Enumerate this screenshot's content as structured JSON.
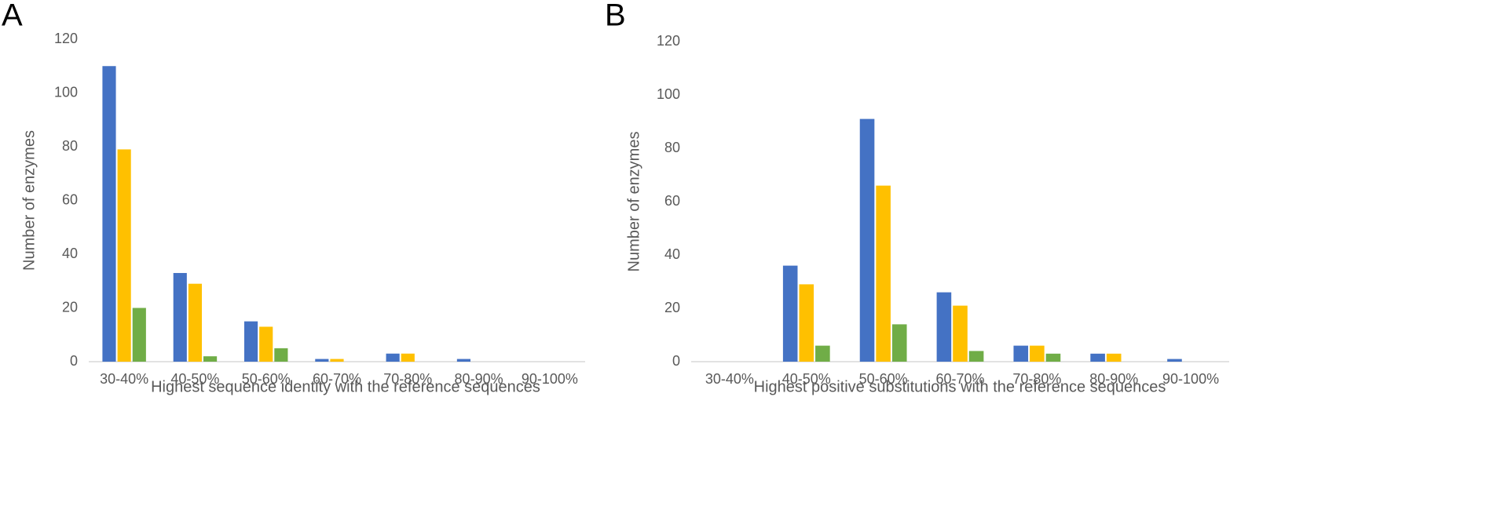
{
  "chart_data": [
    {
      "type": "bar",
      "panel_label": "A",
      "x_label": "Highest sequence identity with the reference sequences",
      "y_label": "Number of enzymes",
      "categories": [
        "30-40%",
        "40-50%",
        "50-60%",
        "60-70%",
        "70-80%",
        "80-90%",
        "90-100%"
      ],
      "series": [
        {
          "color": "#4472c4",
          "values": [
            110,
            33,
            15,
            1,
            3,
            1,
            0
          ]
        },
        {
          "color": "#ffc000",
          "values": [
            79,
            29,
            13,
            1,
            3,
            0,
            0
          ]
        },
        {
          "color": "#70ad47",
          "values": [
            20,
            2,
            5,
            0,
            0,
            0,
            0
          ]
        }
      ],
      "ylim": [
        0,
        120
      ],
      "yticks": [
        0,
        20,
        40,
        60,
        80,
        100,
        120
      ],
      "grid": false
    },
    {
      "type": "bar",
      "panel_label": "B",
      "x_label": "Highest positive substitutions with the reference sequences",
      "y_label": "Number of enzymes",
      "categories": [
        "30-40%",
        "40-50%",
        "50-60%",
        "60-70%",
        "70-80%",
        "80-90%",
        "90-100%"
      ],
      "series": [
        {
          "color": "#4472c4",
          "values": [
            0,
            36,
            91,
            26,
            6,
            3,
            1
          ]
        },
        {
          "color": "#ffc000",
          "values": [
            0,
            29,
            66,
            21,
            6,
            3,
            0
          ]
        },
        {
          "color": "#70ad47",
          "values": [
            0,
            6,
            14,
            4,
            3,
            0,
            0
          ]
        }
      ],
      "ylim": [
        0,
        120
      ],
      "yticks": [
        0,
        20,
        40,
        60,
        80,
        100,
        120
      ],
      "grid": false
    }
  ]
}
